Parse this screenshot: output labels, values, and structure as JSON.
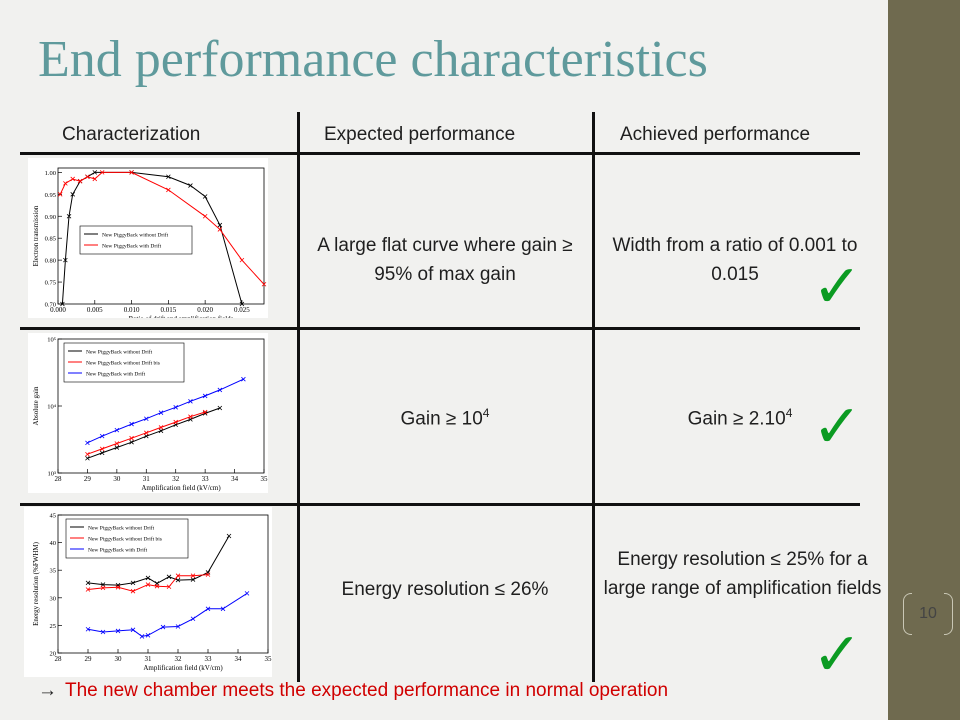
{
  "title": "End performance characteristics",
  "headers": {
    "characterization": "Characterization",
    "expected": "Expected performance",
    "achieved": "Achieved performance"
  },
  "rows": [
    {
      "expected": "A large flat curve where gain ≥ 95% of max gain",
      "achieved": "Width from a ratio of 0.001 to 0.015"
    },
    {
      "expected_base": "Gain ≥ 10",
      "expected_exp": "4",
      "achieved_base": "Gain ≥ 2.10",
      "achieved_exp": "4"
    },
    {
      "expected": "Energy resolution ≤ 26%",
      "achieved": "Energy resolution ≤ 25% for a large range of amplification fields"
    }
  ],
  "check_glyph": "✓",
  "colors": {
    "accent": "#5f9a9c",
    "check": "#0b9b22",
    "conclusion": "#d00000",
    "sidebar": "#6f6a4f"
  },
  "page_number": "10",
  "conclusion": {
    "arrow": "→",
    "text": "The new chamber meets the expected performance in normal operation"
  },
  "chart_data": [
    {
      "type": "line",
      "xlabel": "Ratio of drift and amplification fields",
      "ylabel": "Electron transmission",
      "x_ticks": [
        "0.000",
        "0.005",
        "0.010",
        "0.015",
        "0.020",
        "0.025"
      ],
      "y_ticks": [
        "0.70",
        "0.75",
        "0.80",
        "0.85",
        "0.90",
        "0.95",
        "1.00"
      ],
      "xlim": [
        0,
        0.028
      ],
      "ylim": [
        0.7,
        1.01
      ],
      "legend": "center-left",
      "series": [
        {
          "name": "New PiggyBack without Drift",
          "color": "#000000",
          "x": [
            0.0006,
            0.001,
            0.0015,
            0.002,
            0.003,
            0.004,
            0.005,
            0.01,
            0.015,
            0.018,
            0.02,
            0.022,
            0.025
          ],
          "y": [
            0.7,
            0.8,
            0.9,
            0.95,
            0.98,
            0.99,
            1.0,
            1.0,
            0.99,
            0.97,
            0.945,
            0.88,
            0.7
          ]
        },
        {
          "name": "New PiggyBack with Drift",
          "color": "#ff0000",
          "x": [
            0.0003,
            0.001,
            0.002,
            0.003,
            0.004,
            0.005,
            0.006,
            0.01,
            0.015,
            0.02,
            0.022,
            0.025,
            0.028
          ],
          "y": [
            0.95,
            0.975,
            0.985,
            0.98,
            0.99,
            0.985,
            1.0,
            1.0,
            0.96,
            0.9,
            0.87,
            0.8,
            0.745
          ]
        }
      ]
    },
    {
      "type": "line",
      "xlabel": "Amplification field (kV/cm)",
      "ylabel": "Absolute gain",
      "x_ticks": [
        "28",
        "29",
        "30",
        "31",
        "32",
        "33",
        "34",
        "35"
      ],
      "y_ticks": [
        "10³",
        "10⁴",
        "10⁵"
      ],
      "xlim": [
        28,
        35
      ],
      "ylim": [
        3,
        5
      ],
      "y_scale": "log",
      "legend": "top-left",
      "series": [
        {
          "name": "New PiggyBack without Drift",
          "color": "#000000",
          "x": [
            29,
            29.5,
            30,
            30.5,
            31,
            31.5,
            32,
            32.5,
            33,
            33.5
          ],
          "y": [
            3.22,
            3.3,
            3.38,
            3.46,
            3.55,
            3.63,
            3.72,
            3.8,
            3.89,
            3.97
          ]
        },
        {
          "name": "New PiggyBack without Drift bis",
          "color": "#ff0000",
          "x": [
            29,
            29.5,
            30,
            30.5,
            31,
            31.5,
            32,
            32.5,
            33
          ],
          "y": [
            3.28,
            3.36,
            3.44,
            3.52,
            3.6,
            3.68,
            3.76,
            3.84,
            3.91
          ]
        },
        {
          "name": "New PiggyBack with Drift",
          "color": "#0000ff",
          "x": [
            29,
            29.5,
            30,
            30.5,
            31,
            31.5,
            32,
            32.5,
            33,
            33.5,
            34.3
          ],
          "y": [
            3.45,
            3.55,
            3.64,
            3.73,
            3.81,
            3.9,
            3.98,
            4.07,
            4.15,
            4.24,
            4.4
          ]
        }
      ]
    },
    {
      "type": "line",
      "xlabel": "Amplification field (kV/cm)",
      "ylabel": "Energy resolution (%FWHM)",
      "x_ticks": [
        "28",
        "29",
        "30",
        "31",
        "32",
        "33",
        "34",
        "35"
      ],
      "y_ticks": [
        "20",
        "25",
        "30",
        "35",
        "40",
        "45"
      ],
      "xlim": [
        28,
        35
      ],
      "ylim": [
        20,
        45
      ],
      "legend": "top-left",
      "series": [
        {
          "name": "New PiggyBack without Drift",
          "color": "#000000",
          "x": [
            29,
            29.5,
            30,
            30.5,
            31,
            31.3,
            31.7,
            32,
            32.5,
            33,
            33.7
          ],
          "y": [
            32.7,
            32.4,
            32.3,
            32.7,
            33.6,
            32.6,
            33.8,
            33.2,
            33.3,
            34.6,
            41.2
          ]
        },
        {
          "name": "New PiggyBack without Drift bis",
          "color": "#ff0000",
          "x": [
            29,
            29.5,
            30,
            30.5,
            31,
            31.3,
            31.7,
            32,
            32.5,
            33
          ],
          "y": [
            31.5,
            31.8,
            31.9,
            31.2,
            32.4,
            32.1,
            32.0,
            34.0,
            34.0,
            34.2
          ]
        },
        {
          "name": "New PiggyBack with Drift",
          "color": "#0000ff",
          "x": [
            29,
            29.5,
            30,
            30.5,
            30.8,
            31,
            31.5,
            32,
            32.5,
            33,
            33.5,
            34.3
          ],
          "y": [
            24.3,
            23.8,
            24.0,
            24.2,
            23.0,
            23.2,
            24.7,
            24.8,
            26.2,
            28.0,
            28.0,
            30.8
          ]
        }
      ]
    }
  ]
}
